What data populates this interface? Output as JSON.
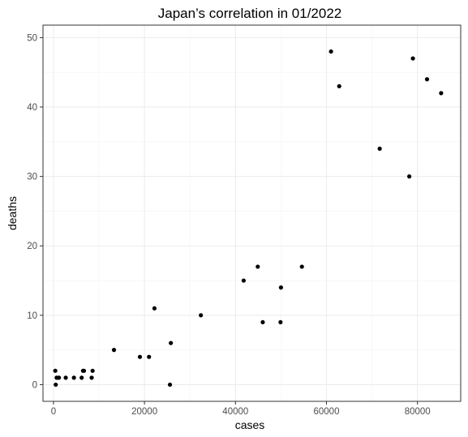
{
  "chart_data": {
    "type": "scatter",
    "title": "Japan’s correlation in 01/2022",
    "xlabel": "cases",
    "ylabel": "deaths",
    "xlim": [
      -2300,
      89500
    ],
    "ylim": [
      -2.4,
      51.8
    ],
    "x_ticks": [
      0,
      20000,
      40000,
      60000,
      80000
    ],
    "x_tick_labels": [
      "0",
      "20000",
      "40000",
      "60000",
      "80000"
    ],
    "y_ticks": [
      0,
      10,
      20,
      30,
      40,
      50
    ],
    "y_tick_labels": [
      "0",
      "10",
      "20",
      "30",
      "40",
      "50"
    ],
    "grid": true,
    "legend": "none",
    "point_color": "#000000",
    "points": [
      {
        "x": 400,
        "y": 2
      },
      {
        "x": 500,
        "y": 0
      },
      {
        "x": 700,
        "y": 1
      },
      {
        "x": 1200,
        "y": 1
      },
      {
        "x": 2700,
        "y": 1
      },
      {
        "x": 4500,
        "y": 1
      },
      {
        "x": 6200,
        "y": 1
      },
      {
        "x": 6500,
        "y": 2
      },
      {
        "x": 6700,
        "y": 2
      },
      {
        "x": 8400,
        "y": 1
      },
      {
        "x": 8600,
        "y": 2
      },
      {
        "x": 13300,
        "y": 5
      },
      {
        "x": 19000,
        "y": 4
      },
      {
        "x": 21000,
        "y": 4
      },
      {
        "x": 22200,
        "y": 11
      },
      {
        "x": 25800,
        "y": 6
      },
      {
        "x": 25600,
        "y": 0
      },
      {
        "x": 32400,
        "y": 10
      },
      {
        "x": 41800,
        "y": 15
      },
      {
        "x": 44900,
        "y": 17
      },
      {
        "x": 46000,
        "y": 9
      },
      {
        "x": 50000,
        "y": 14
      },
      {
        "x": 49900,
        "y": 9
      },
      {
        "x": 54600,
        "y": 17
      },
      {
        "x": 61000,
        "y": 48
      },
      {
        "x": 62800,
        "y": 43
      },
      {
        "x": 71700,
        "y": 34
      },
      {
        "x": 78200,
        "y": 30
      },
      {
        "x": 79000,
        "y": 47
      },
      {
        "x": 82100,
        "y": 44
      },
      {
        "x": 85200,
        "y": 42
      }
    ]
  }
}
